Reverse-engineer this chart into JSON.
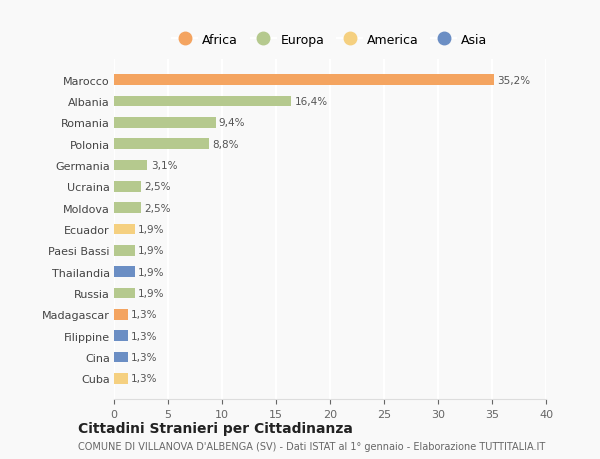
{
  "countries": [
    "Marocco",
    "Albania",
    "Romania",
    "Polonia",
    "Germania",
    "Ucraina",
    "Moldova",
    "Ecuador",
    "Paesi Bassi",
    "Thailandia",
    "Russia",
    "Madagascar",
    "Filippine",
    "Cina",
    "Cuba"
  ],
  "values": [
    35.2,
    16.4,
    9.4,
    8.8,
    3.1,
    2.5,
    2.5,
    1.9,
    1.9,
    1.9,
    1.9,
    1.3,
    1.3,
    1.3,
    1.3
  ],
  "labels": [
    "35,2%",
    "16,4%",
    "9,4%",
    "8,8%",
    "3,1%",
    "2,5%",
    "2,5%",
    "1,9%",
    "1,9%",
    "1,9%",
    "1,9%",
    "1,3%",
    "1,3%",
    "1,3%",
    "1,3%"
  ],
  "continents": [
    "Africa",
    "Europa",
    "Europa",
    "Europa",
    "Europa",
    "Europa",
    "Europa",
    "America",
    "Europa",
    "Asia",
    "Europa",
    "Africa",
    "Asia",
    "Asia",
    "America"
  ],
  "colors": {
    "Africa": "#F4A460",
    "Europa": "#B5C98E",
    "America": "#F5D080",
    "Asia": "#6B8EC4"
  },
  "legend_order": [
    "Africa",
    "Europa",
    "America",
    "Asia"
  ],
  "legend_colors": {
    "Africa": "#F4A460",
    "Europa": "#B5C98E",
    "America": "#F5D080",
    "Asia": "#6B8EC4"
  },
  "title": "Cittadini Stranieri per Cittadinanza",
  "subtitle": "COMUNE DI VILLANOVA D'ALBENGA (SV) - Dati ISTAT al 1° gennaio - Elaborazione TUTTITALIA.IT",
  "xlim": [
    0,
    40
  ],
  "xticks": [
    0,
    5,
    10,
    15,
    20,
    25,
    30,
    35,
    40
  ],
  "background_color": "#f9f9f9",
  "grid_color": "#ffffff"
}
